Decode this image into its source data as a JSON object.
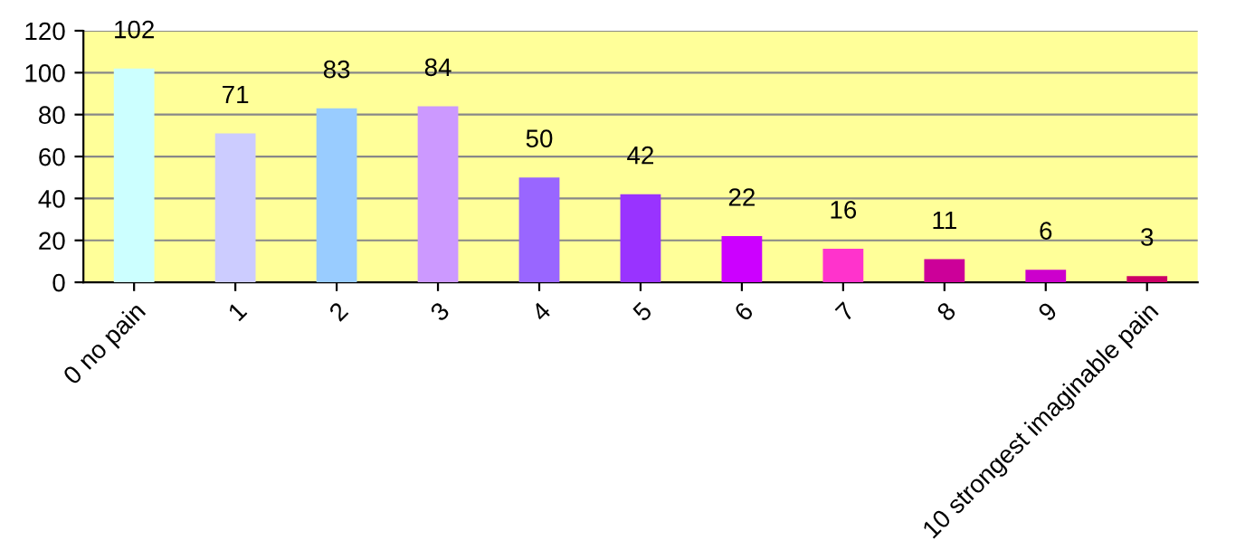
{
  "chart_data": {
    "type": "bar",
    "categories": [
      "0 no pain",
      "1",
      "2",
      "3",
      "4",
      "5",
      "6",
      "7",
      "8",
      "9",
      "10 strongest imaginable pain"
    ],
    "values": [
      102,
      71,
      83,
      84,
      50,
      42,
      22,
      16,
      11,
      6,
      3
    ],
    "colors": [
      "#ccffff",
      "#ccccff",
      "#99ccff",
      "#cc99ff",
      "#9966ff",
      "#9933ff",
      "#cc00ff",
      "#ff33cc",
      "#cc0099",
      "#cc00cc",
      "#cc0066"
    ],
    "ylim": [
      0,
      120
    ],
    "yticks": [
      0,
      20,
      40,
      60,
      80,
      100,
      120
    ],
    "grid": "y",
    "data_labels": true
  }
}
